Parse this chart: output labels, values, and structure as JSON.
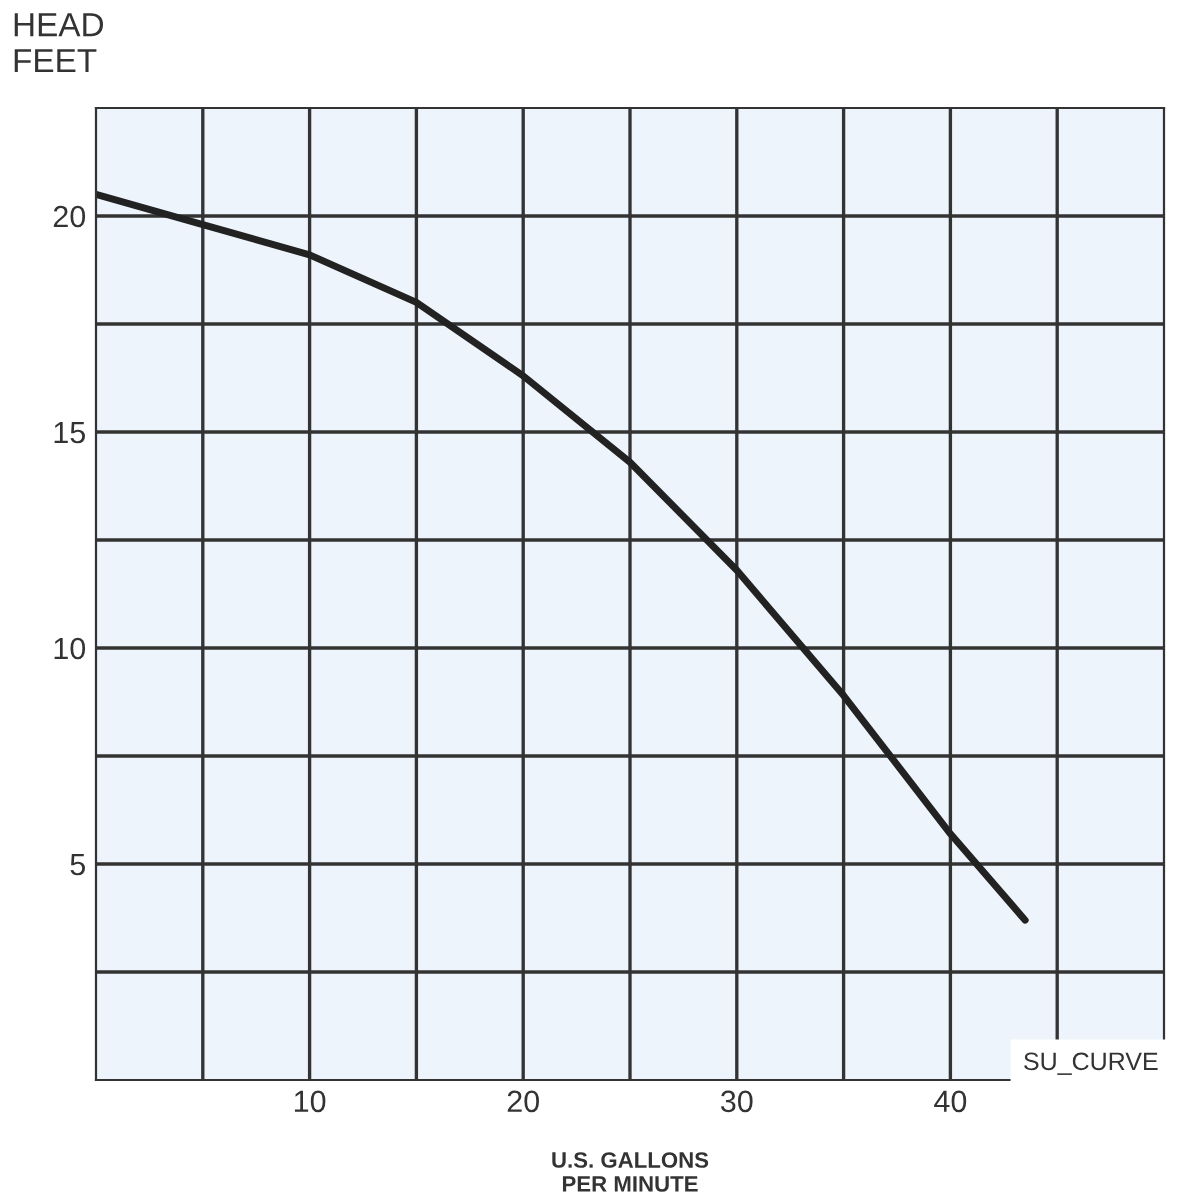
{
  "chart_data": {
    "type": "line",
    "xlabel": "U.S. GALLONS\nPER MINUTE",
    "ylabel": "HEAD\nFEET",
    "x": [
      0,
      5,
      10,
      15,
      20,
      25,
      30,
      35,
      40,
      43.5
    ],
    "series": [
      {
        "color": "#222222",
        "values": [
          20.5,
          19.8,
          19.1,
          18.0,
          16.3,
          14.3,
          11.8,
          8.9,
          5.7,
          3.7
        ]
      }
    ],
    "xlim": [
      0,
      50
    ],
    "ylim": [
      0,
      22.5
    ],
    "xticks": [
      {
        "value": 5,
        "label": null
      },
      10,
      {
        "value": 15,
        "label": null
      },
      20,
      {
        "value": 25,
        "label": null
      },
      30,
      {
        "value": 35,
        "label": null
      },
      40,
      {
        "value": 45,
        "label": null
      }
    ],
    "yticks": [
      {
        "value": 2.5,
        "label": null
      },
      5,
      {
        "value": 7.5,
        "label": null
      },
      10,
      {
        "value": 12.5,
        "label": null
      },
      15,
      {
        "value": 17.5,
        "label": null
      },
      20
    ],
    "grid": true,
    "marker": "none",
    "line_style": "solid",
    "annotations": [
      "SU_CURVE"
    ]
  }
}
